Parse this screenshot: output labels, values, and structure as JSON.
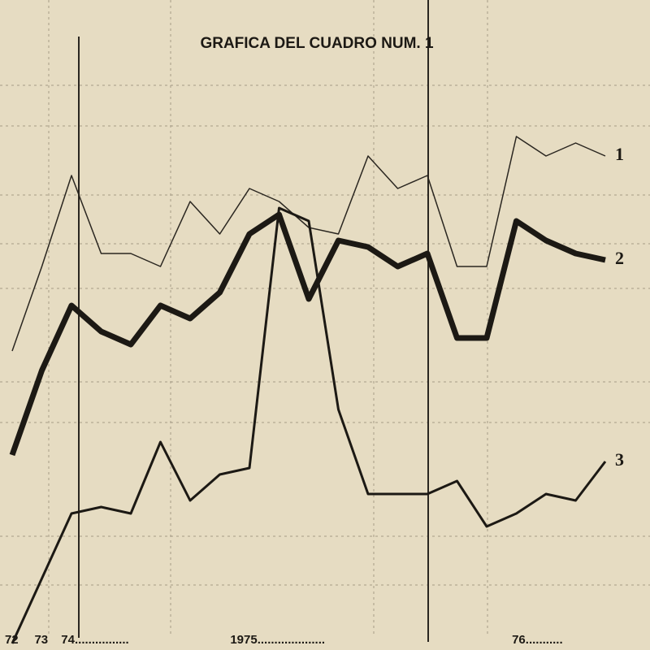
{
  "chart_data": {
    "type": "line",
    "title": "GRAFICA DEL CUADRO NUM. 1",
    "x": [
      0,
      1,
      2,
      3,
      4,
      5,
      6,
      7,
      8,
      9,
      10,
      11,
      12,
      13,
      14,
      15,
      16,
      17,
      18,
      19,
      20
    ],
    "xlim": [
      0,
      20
    ],
    "xticks": [
      {
        "value": 0.3,
        "label": "72"
      },
      {
        "value": 1.3,
        "label": "73"
      },
      {
        "value": 2.2,
        "label": "74................"
      },
      {
        "value": 7.9,
        "label": "1975...................."
      },
      {
        "value": 17.4,
        "label": "76..........."
      }
    ],
    "ylim": [
      0,
      100
    ],
    "series": [
      {
        "name": "1",
        "color": "#2a2620",
        "values": [
          46,
          59,
          73,
          61,
          61,
          59,
          69,
          64,
          71,
          69,
          65,
          64,
          76,
          71,
          73,
          59,
          59,
          79,
          76,
          78,
          76
        ]
      },
      {
        "name": "2",
        "color": "#1c1914",
        "values": [
          30,
          43,
          53,
          49,
          47,
          53,
          51,
          55,
          64,
          67,
          54,
          63,
          62,
          59,
          61,
          48,
          48,
          66,
          63,
          61,
          60
        ]
      },
      {
        "name": "3",
        "color": "#1c1914",
        "values": [
          1,
          11,
          21,
          22,
          21,
          32,
          23,
          27,
          28,
          68,
          66,
          37,
          24,
          24,
          24,
          26,
          19,
          21,
          24,
          23,
          29
        ]
      }
    ]
  }
}
